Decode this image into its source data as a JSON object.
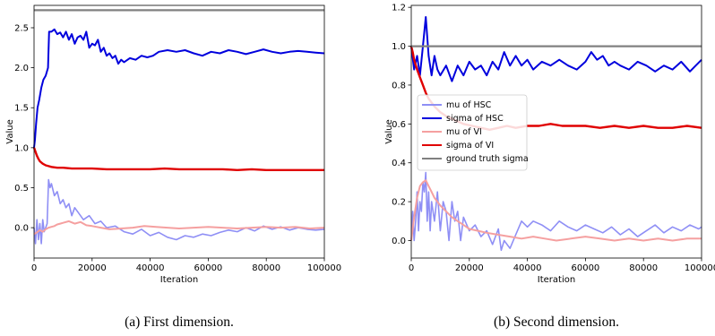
{
  "colors": {
    "mu_hsc": "#8f8ff5",
    "sigma_hsc": "#0000dd",
    "mu_vi": "#f5a0a0",
    "sigma_vi": "#e00000",
    "ground_truth": "#808080"
  },
  "legend": {
    "placement": "center-left",
    "entries": [
      "mu of HSC",
      "sigma of HSC",
      "mu of VI",
      "sigma of VI",
      "ground truth sigma"
    ]
  },
  "chart_data": [
    {
      "type": "line",
      "caption": "(a)  First dimension.",
      "xlabel": "Iteration",
      "ylabel": "Value",
      "xlim": [
        0,
        100000
      ],
      "ylim": [
        -0.38,
        2.78
      ],
      "xticks": [
        0,
        20000,
        40000,
        60000,
        80000,
        100000
      ],
      "xtick_labels": [
        "0",
        "20000",
        "40000",
        "60000",
        "80000",
        "100000"
      ],
      "yticks": [
        0.0,
        0.5,
        1.0,
        1.5,
        2.0,
        2.5
      ],
      "ytick_labels": [
        "0.0",
        "0.5",
        "1.0",
        "1.5",
        "2.0",
        "2.5"
      ],
      "grid": false,
      "series": [
        {
          "name": "mu of HSC",
          "color_key": "mu_hsc",
          "x": [
            0,
            500,
            1000,
            1500,
            2000,
            2500,
            3000,
            3500,
            4000,
            4500,
            5000,
            5500,
            6000,
            7000,
            8000,
            9000,
            10000,
            11000,
            12000,
            13000,
            14000,
            15000,
            17000,
            19000,
            21000,
            23000,
            25000,
            28000,
            31000,
            34000,
            37000,
            40000,
            43000,
            46000,
            49000,
            52000,
            55000,
            58000,
            61000,
            64000,
            67000,
            70000,
            73000,
            76000,
            79000,
            82000,
            85000,
            88000,
            91000,
            94000,
            97000,
            100000
          ],
          "y": [
            0.0,
            -0.2,
            0.1,
            -0.15,
            0.05,
            -0.2,
            0.1,
            -0.05,
            0.0,
            0.05,
            0.6,
            0.5,
            0.55,
            0.4,
            0.45,
            0.3,
            0.35,
            0.25,
            0.3,
            0.15,
            0.25,
            0.2,
            0.1,
            0.15,
            0.05,
            0.08,
            0.0,
            0.02,
            -0.05,
            -0.08,
            -0.02,
            -0.1,
            -0.06,
            -0.12,
            -0.15,
            -0.1,
            -0.12,
            -0.08,
            -0.1,
            -0.06,
            -0.03,
            -0.05,
            0.0,
            -0.04,
            0.02,
            -0.02,
            0.01,
            -0.03,
            0.0,
            -0.02,
            -0.03,
            -0.02
          ]
        },
        {
          "name": "sigma of HSC",
          "color_key": "sigma_hsc",
          "x": [
            0,
            300,
            700,
            1200,
            1800,
            2500,
            3200,
            4000,
            4800,
            5200,
            6000,
            7000,
            8000,
            9000,
            10000,
            11000,
            12000,
            13000,
            14000,
            15000,
            16000,
            17000,
            18000,
            19000,
            20000,
            21000,
            22000,
            23000,
            24000,
            25000,
            26000,
            27000,
            28000,
            29000,
            30000,
            31000,
            33000,
            35000,
            37000,
            39000,
            41000,
            43000,
            46000,
            49000,
            52000,
            55000,
            58000,
            61000,
            64000,
            67000,
            70000,
            73000,
            76000,
            79000,
            82000,
            85000,
            88000,
            91000,
            94000,
            97000,
            100000
          ],
          "y": [
            1.0,
            1.1,
            1.3,
            1.5,
            1.6,
            1.75,
            1.85,
            1.9,
            2.0,
            2.45,
            2.45,
            2.48,
            2.42,
            2.44,
            2.38,
            2.45,
            2.35,
            2.42,
            2.3,
            2.38,
            2.4,
            2.35,
            2.45,
            2.25,
            2.3,
            2.28,
            2.35,
            2.2,
            2.25,
            2.15,
            2.18,
            2.12,
            2.15,
            2.05,
            2.1,
            2.07,
            2.12,
            2.1,
            2.15,
            2.13,
            2.15,
            2.2,
            2.22,
            2.2,
            2.22,
            2.18,
            2.15,
            2.2,
            2.18,
            2.22,
            2.2,
            2.17,
            2.2,
            2.23,
            2.2,
            2.18,
            2.2,
            2.21,
            2.2,
            2.19,
            2.18
          ]
        },
        {
          "name": "mu of VI",
          "color_key": "mu_vi",
          "x": [
            0,
            1000,
            2000,
            3000,
            4000,
            5000,
            6000,
            7000,
            8000,
            9000,
            10000,
            12000,
            14000,
            16000,
            18000,
            20000,
            23000,
            26000,
            30000,
            34000,
            38000,
            42000,
            46000,
            50000,
            55000,
            60000,
            65000,
            70000,
            75000,
            80000,
            85000,
            90000,
            95000,
            100000
          ],
          "y": [
            -0.08,
            -0.06,
            -0.03,
            -0.05,
            -0.02,
            0.0,
            0.01,
            0.02,
            0.04,
            0.05,
            0.06,
            0.08,
            0.05,
            0.07,
            0.03,
            0.02,
            0.0,
            -0.02,
            -0.01,
            0.0,
            0.02,
            0.01,
            0.0,
            -0.01,
            0.0,
            0.01,
            0.0,
            -0.01,
            0.0,
            0.01,
            0.0,
            0.01,
            -0.01,
            0.0
          ]
        },
        {
          "name": "sigma of VI",
          "color_key": "sigma_vi",
          "x": [
            0,
            500,
            1000,
            1500,
            2000,
            3000,
            4000,
            5000,
            6000,
            8000,
            10000,
            13000,
            16000,
            20000,
            25000,
            30000,
            35000,
            40000,
            45000,
            50000,
            55000,
            60000,
            65000,
            70000,
            75000,
            80000,
            85000,
            90000,
            95000,
            100000
          ],
          "y": [
            1.0,
            0.95,
            0.9,
            0.86,
            0.83,
            0.8,
            0.78,
            0.77,
            0.76,
            0.75,
            0.75,
            0.74,
            0.74,
            0.74,
            0.73,
            0.73,
            0.73,
            0.73,
            0.74,
            0.73,
            0.73,
            0.73,
            0.73,
            0.72,
            0.73,
            0.72,
            0.72,
            0.72,
            0.72,
            0.72
          ]
        },
        {
          "name": "ground truth sigma",
          "color_key": "ground_truth",
          "x": [
            0,
            100000
          ],
          "y": [
            2.72,
            2.72
          ]
        }
      ]
    },
    {
      "type": "line",
      "caption": "(b)  Second dimension.",
      "xlabel": "Iteration",
      "ylabel": "Value",
      "xlim": [
        0,
        100000
      ],
      "ylim": [
        -0.09,
        1.21
      ],
      "xticks": [
        0,
        20000,
        40000,
        60000,
        80000,
        100000
      ],
      "xtick_labels": [
        "0",
        "20000",
        "40000",
        "60000",
        "80000",
        "100000"
      ],
      "yticks": [
        0.0,
        0.2,
        0.4,
        0.6,
        0.8,
        1.0,
        1.2
      ],
      "ytick_labels": [
        "0.0",
        "0.2",
        "0.4",
        "0.6",
        "0.8",
        "1.0",
        "1.2"
      ],
      "grid": false,
      "series": [
        {
          "name": "mu of HSC",
          "color_key": "mu_hsc",
          "x": [
            0,
            500,
            1000,
            1500,
            2000,
            2500,
            3000,
            3500,
            4000,
            4500,
            5000,
            5500,
            6000,
            6500,
            7000,
            8000,
            9000,
            10000,
            11000,
            12000,
            13000,
            14000,
            15000,
            16000,
            17000,
            18000,
            20000,
            22000,
            24000,
            26000,
            28000,
            30000,
            31000,
            32000,
            34000,
            36000,
            38000,
            40000,
            42000,
            45000,
            48000,
            51000,
            54000,
            57000,
            60000,
            63000,
            66000,
            69000,
            72000,
            75000,
            78000,
            81000,
            84000,
            87000,
            90000,
            93000,
            96000,
            99000,
            100000
          ],
          "y": [
            0.0,
            0.15,
            0.0,
            0.1,
            0.25,
            0.05,
            0.2,
            0.15,
            0.3,
            0.25,
            0.35,
            0.1,
            0.25,
            0.05,
            0.2,
            0.1,
            0.25,
            0.05,
            0.2,
            0.15,
            0.0,
            0.2,
            0.1,
            0.15,
            0.0,
            0.12,
            0.05,
            0.08,
            0.02,
            0.05,
            -0.02,
            0.06,
            -0.05,
            0.0,
            -0.04,
            0.03,
            0.1,
            0.07,
            0.1,
            0.08,
            0.05,
            0.1,
            0.07,
            0.05,
            0.08,
            0.06,
            0.04,
            0.07,
            0.03,
            0.06,
            0.02,
            0.05,
            0.08,
            0.04,
            0.07,
            0.05,
            0.08,
            0.06,
            0.07
          ]
        },
        {
          "name": "sigma of HSC",
          "color_key": "sigma_hsc",
          "x": [
            0,
            1000,
            2000,
            3000,
            4000,
            5000,
            5500,
            6000,
            7000,
            8000,
            9000,
            10000,
            12000,
            14000,
            16000,
            18000,
            20000,
            22000,
            24000,
            26000,
            28000,
            30000,
            32000,
            34000,
            36000,
            38000,
            40000,
            42000,
            45000,
            48000,
            51000,
            54000,
            57000,
            60000,
            62000,
            64000,
            66000,
            68000,
            70000,
            72000,
            75000,
            78000,
            81000,
            84000,
            87000,
            90000,
            93000,
            96000,
            98000,
            100000
          ],
          "y": [
            1.0,
            0.88,
            0.95,
            0.85,
            1.0,
            1.15,
            1.05,
            0.95,
            0.85,
            0.95,
            0.88,
            0.85,
            0.9,
            0.82,
            0.9,
            0.85,
            0.92,
            0.88,
            0.9,
            0.85,
            0.92,
            0.88,
            0.97,
            0.9,
            0.95,
            0.9,
            0.93,
            0.88,
            0.92,
            0.9,
            0.93,
            0.9,
            0.88,
            0.92,
            0.97,
            0.93,
            0.95,
            0.9,
            0.92,
            0.9,
            0.88,
            0.92,
            0.9,
            0.87,
            0.9,
            0.88,
            0.92,
            0.87,
            0.9,
            0.93
          ]
        },
        {
          "name": "mu of VI",
          "color_key": "mu_vi",
          "x": [
            0,
            1000,
            2000,
            3000,
            4000,
            5000,
            6000,
            7000,
            8000,
            10000,
            12000,
            14000,
            16000,
            18000,
            20000,
            23000,
            26000,
            30000,
            34000,
            38000,
            42000,
            46000,
            50000,
            55000,
            60000,
            65000,
            70000,
            75000,
            80000,
            85000,
            90000,
            95000,
            100000
          ],
          "y": [
            0.0,
            0.12,
            0.22,
            0.28,
            0.3,
            0.31,
            0.28,
            0.25,
            0.22,
            0.18,
            0.15,
            0.12,
            0.1,
            0.08,
            0.06,
            0.05,
            0.04,
            0.03,
            0.02,
            0.01,
            0.02,
            0.01,
            0.0,
            0.01,
            0.02,
            0.01,
            0.0,
            0.01,
            0.0,
            0.01,
            0.0,
            0.01,
            0.01
          ]
        },
        {
          "name": "sigma of VI",
          "color_key": "sigma_vi",
          "x": [
            0,
            500,
            1000,
            2000,
            3000,
            4000,
            5000,
            6000,
            8000,
            10000,
            12000,
            15000,
            18000,
            21000,
            24000,
            27000,
            30000,
            33000,
            36000,
            40000,
            44000,
            48000,
            52000,
            56000,
            60000,
            65000,
            70000,
            75000,
            80000,
            85000,
            90000,
            95000,
            100000
          ],
          "y": [
            1.0,
            0.97,
            0.93,
            0.88,
            0.84,
            0.8,
            0.76,
            0.73,
            0.69,
            0.66,
            0.64,
            0.62,
            0.6,
            0.59,
            0.58,
            0.57,
            0.58,
            0.59,
            0.58,
            0.59,
            0.59,
            0.6,
            0.59,
            0.59,
            0.59,
            0.58,
            0.59,
            0.58,
            0.59,
            0.58,
            0.58,
            0.59,
            0.58
          ]
        },
        {
          "name": "ground truth sigma",
          "color_key": "ground_truth",
          "x": [
            0,
            100000
          ],
          "y": [
            1.0,
            1.0
          ]
        }
      ]
    }
  ]
}
